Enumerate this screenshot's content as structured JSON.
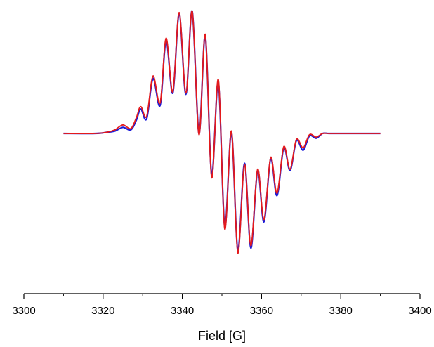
{
  "chart_data": {
    "type": "line",
    "title": "",
    "xlabel": "Field [G]",
    "ylabel": "",
    "xlim": [
      3300,
      3400
    ],
    "ylim": [
      -1.0,
      1.0
    ],
    "grid": false,
    "y_axis_visible": false,
    "x_ticks": [
      "3300",
      "3320",
      "3340",
      "3360",
      "3380",
      "3400"
    ],
    "x_tick_values": [
      3300,
      3320,
      3340,
      3360,
      3380,
      3400
    ],
    "series": [
      {
        "color": "#1a1ad8",
        "x": [
          3310,
          3318,
          3321,
          3323,
          3325,
          3327,
          3328.4,
          3329.5,
          3331,
          3332.6,
          3334.4,
          3335.9,
          3337.6,
          3339.2,
          3340.9,
          3342.5,
          3344.2,
          3345.8,
          3347.4,
          3349.1,
          3350.7,
          3352.4,
          3354.0,
          3355.7,
          3357.3,
          3359.0,
          3360.6,
          3362.3,
          3363.9,
          3365.6,
          3367.2,
          3368.8,
          3370.5,
          3372.1,
          3373.8,
          3375.4,
          3377,
          3380,
          3383,
          3390
        ],
        "y": [
          0.0,
          0.0,
          0.01,
          0.02,
          0.05,
          0.03,
          0.11,
          0.2,
          0.12,
          0.45,
          0.23,
          0.76,
          0.33,
          0.98,
          0.32,
          1.0,
          0.0,
          0.8,
          -0.35,
          0.42,
          -0.78,
          0.01,
          -0.98,
          -0.25,
          -0.96,
          -0.31,
          -0.74,
          -0.21,
          -0.52,
          -0.12,
          -0.31,
          -0.06,
          -0.14,
          -0.02,
          -0.04,
          0.0,
          0.0,
          0.0,
          0.0,
          0.0
        ]
      },
      {
        "color": "#e41a1c",
        "x": [
          3310,
          3318,
          3321,
          3323,
          3325,
          3327,
          3328.4,
          3329.5,
          3331,
          3332.6,
          3334.4,
          3335.9,
          3337.6,
          3339.2,
          3340.9,
          3342.5,
          3344.2,
          3345.8,
          3347.4,
          3349.1,
          3350.7,
          3352.4,
          3354.0,
          3355.7,
          3357.3,
          3359.0,
          3360.6,
          3362.3,
          3363.9,
          3365.6,
          3367.2,
          3368.8,
          3370.5,
          3372.1,
          3373.8,
          3375.4,
          3377,
          3380,
          3383,
          3390
        ],
        "y": [
          0.0,
          0.0,
          0.01,
          0.03,
          0.07,
          0.04,
          0.13,
          0.22,
          0.14,
          0.47,
          0.25,
          0.78,
          0.34,
          0.99,
          0.33,
          1.0,
          -0.01,
          0.81,
          -0.37,
          0.44,
          -0.8,
          0.02,
          -1.0,
          -0.26,
          -0.94,
          -0.3,
          -0.72,
          -0.2,
          -0.5,
          -0.11,
          -0.3,
          -0.05,
          -0.12,
          -0.01,
          -0.03,
          0.0,
          0.0,
          0.0,
          0.0,
          0.0
        ]
      }
    ]
  }
}
